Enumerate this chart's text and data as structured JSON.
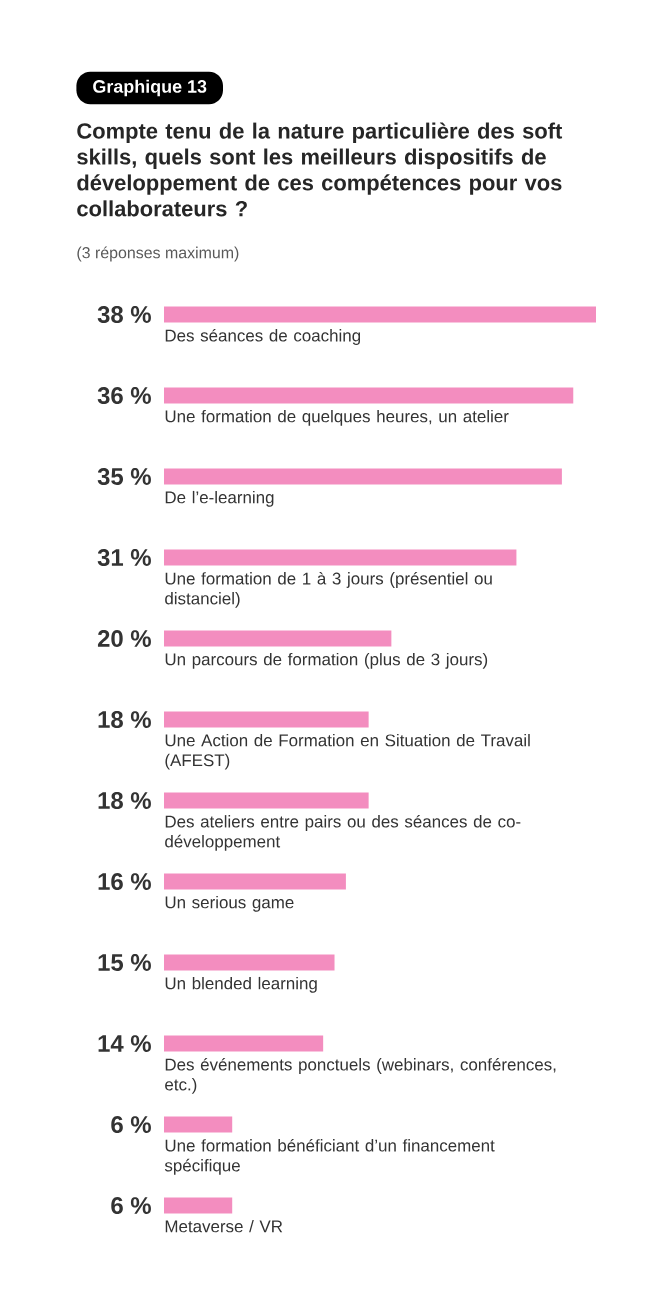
{
  "chart_data": {
    "type": "bar",
    "orientation": "horizontal",
    "annotations": [
      "Graphique 13"
    ],
    "title": "Compte tenu de la nature particulière des soft skills, quels sont les meilleurs dispositifs de développement de ces compétences pour vos collaborateurs ?",
    "subtitle": "(3 réponses maximum)",
    "categories": [
      "Des séances de coaching",
      "Une formation de quelques heures, un atelier",
      "De l’e-learning",
      "Une formation de 1 à 3 jours (présentiel ou distanciel)",
      "Un parcours de formation (plus de 3 jours)",
      "Une Action de Formation en Situation de Travail (AFEST)",
      "Des ateliers entre pairs ou des séances de co-développement",
      "Un serious game",
      "Un blended learning",
      "Des événements ponctuels (webinars, conférences, etc.)",
      "Une formation bénéficiant d’un financement spécifique",
      "Metaverse / VR"
    ],
    "values": [
      38,
      36,
      35,
      31,
      20,
      18,
      18,
      16,
      15,
      14,
      6,
      6
    ],
    "value_labels": [
      "38 %",
      "36 %",
      "35 %",
      "31 %",
      "20 %",
      "18 %",
      "18 %",
      "16 %",
      "15 %",
      "14 %",
      "6 %",
      "6 %"
    ],
    "color": "#f38dbf"
  }
}
